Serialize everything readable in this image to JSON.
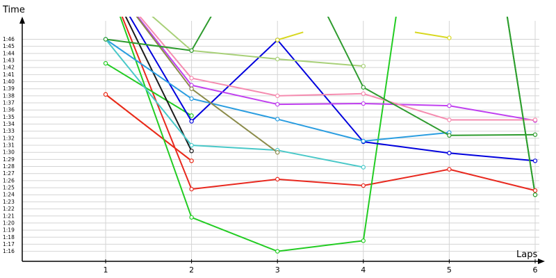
{
  "chart_data": {
    "type": "line",
    "xlabel": "Laps",
    "ylabel": "Time",
    "x": [
      1,
      2,
      3,
      4,
      5,
      6
    ],
    "xticks": [
      "1",
      "2",
      "3",
      "4",
      "5",
      "6"
    ],
    "yticks": [
      "1:16",
      "1:17",
      "1:18",
      "1:19",
      "1:20",
      "1:21",
      "1:22",
      "1:23",
      "1:24",
      "1:25",
      "1:26",
      "1:27",
      "1:28",
      "1:29",
      "1:30",
      "1:31",
      "1:32",
      "1:33",
      "1:34",
      "1:35",
      "1:36",
      "1:37",
      "1:38",
      "1:39",
      "1:40",
      "1:41",
      "1:42",
      "1:43",
      "1:44",
      "1:45",
      "1:46"
    ],
    "ylim_seconds": [
      73,
      106
    ],
    "grid": true,
    "series": [
      {
        "color": "#e8281e",
        "points": [
          [
            1,
            115
          ],
          [
            2,
            84.8
          ],
          [
            3,
            86.2
          ],
          [
            4,
            85.3
          ],
          [
            5,
            87.6
          ],
          [
            6,
            84.6
          ]
        ]
      },
      {
        "color": "#ff8a00",
        "points": [
          [
            1,
            98.2
          ],
          [
            2,
            88.8
          ]
        ]
      },
      {
        "color": "#e8281e",
        "points": [
          [
            1,
            98.2
          ],
          [
            2,
            88.8
          ]
        ]
      },
      {
        "color": "#22cc22",
        "points": [
          [
            1,
            102.6
          ],
          [
            2,
            95.2
          ]
        ]
      },
      {
        "color": "#22cc22",
        "points": [
          [
            1,
            115
          ],
          [
            2,
            80.8
          ],
          [
            3,
            76.0
          ],
          [
            4,
            77.5
          ],
          [
            4.45,
            115
          ]
        ]
      },
      {
        "color": "#22cc22",
        "points": [
          [
            5.6,
            115
          ],
          [
            6,
            84.0
          ]
        ]
      },
      {
        "color": "#0000dd",
        "points": [
          [
            1,
            115
          ],
          [
            2,
            94.4
          ],
          [
            3,
            105.9
          ],
          [
            4,
            91.5
          ],
          [
            5,
            89.9
          ],
          [
            6,
            88.8
          ]
        ]
      },
      {
        "color": "#1a1a1a",
        "points": [
          [
            1,
            115
          ],
          [
            2,
            90.2
          ]
        ]
      },
      {
        "color": "#1a1a1a",
        "points": [
          [
            3,
            105.9
          ]
        ]
      },
      {
        "color": "#2a9de0",
        "points": [
          [
            1,
            106.0
          ],
          [
            2,
            97.6
          ],
          [
            3,
            94.7
          ],
          [
            4,
            91.6
          ],
          [
            5,
            92.8
          ]
        ]
      },
      {
        "color": "#48c8c8",
        "points": [
          [
            1,
            106.0
          ],
          [
            2,
            91.0
          ],
          [
            3,
            90.3
          ],
          [
            4,
            87.9
          ]
        ]
      },
      {
        "color": "#c040f0",
        "points": [
          [
            1,
            115
          ],
          [
            2,
            99.5
          ],
          [
            3,
            96.8
          ],
          [
            4,
            96.9
          ],
          [
            5,
            96.6
          ],
          [
            6,
            94.5
          ]
        ]
      },
      {
        "color": "#f58cb0",
        "points": [
          [
            1,
            115
          ],
          [
            2,
            100.5
          ],
          [
            3,
            98.0
          ],
          [
            4,
            98.3
          ],
          [
            5,
            94.6
          ],
          [
            6,
            94.6
          ]
        ]
      },
      {
        "color": "#8b8b4a",
        "points": [
          [
            1,
            115
          ],
          [
            2,
            99.0
          ],
          [
            3,
            90.0
          ]
        ]
      },
      {
        "color": "#a8d078",
        "points": [
          [
            1,
            115
          ],
          [
            2,
            104.4
          ],
          [
            3,
            103.2
          ],
          [
            4,
            102.2
          ]
        ]
      },
      {
        "color": "#2e9b2e",
        "points": [
          [
            1,
            106.0
          ],
          [
            2,
            104.4
          ],
          [
            2.5,
            115
          ]
        ]
      },
      {
        "color": "#2e9b2e",
        "points": [
          [
            3.35,
            115
          ],
          [
            4,
            99.2
          ],
          [
            5,
            92.4
          ],
          [
            6,
            92.5
          ]
        ]
      },
      {
        "color": "#2e9b2e",
        "points": [
          [
            5.6,
            115
          ],
          [
            6,
            84.0
          ]
        ]
      },
      {
        "color": "#d8d820",
        "points": [
          [
            3,
            105.9
          ],
          [
            3.3,
            107
          ]
        ]
      },
      {
        "color": "#d8d820",
        "points": [
          [
            4.6,
            107
          ],
          [
            5,
            106.2
          ]
        ]
      }
    ]
  }
}
